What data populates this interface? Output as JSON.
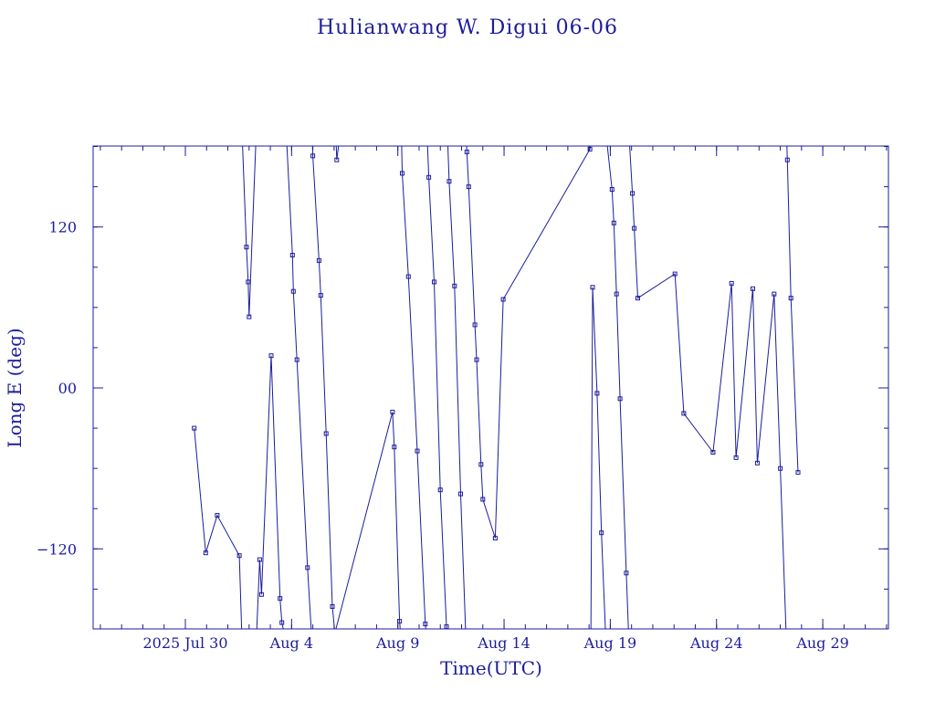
{
  "chart_data": {
    "type": "line",
    "title": "Hulianwang W. Digui 06-06",
    "xlabel": "Time(UTC)",
    "ylabel": "Long E (deg)",
    "ylim": [
      -180,
      180
    ],
    "xlim": [
      "2025-07-26",
      "2025-09-02"
    ],
    "x_ticks": [
      {
        "date": "2025-07-30",
        "label": "2025 Jul 30"
      },
      {
        "date": "2025-08-04",
        "label": "Aug  4"
      },
      {
        "date": "2025-08-09",
        "label": "Aug  9"
      },
      {
        "date": "2025-08-14",
        "label": "Aug 14"
      },
      {
        "date": "2025-08-19",
        "label": "Aug 19"
      },
      {
        "date": "2025-08-24",
        "label": "Aug 24"
      },
      {
        "date": "2025-08-29",
        "label": "Aug 29"
      }
    ],
    "y_ticks": [
      {
        "value": 120,
        "label": "120"
      },
      {
        "value": 0,
        "label": "00"
      },
      {
        "value": -120,
        "label": "−120"
      }
    ],
    "marker": "square",
    "color": "#1c1c9c",
    "background": "#ffffff",
    "series": [
      {
        "values": [
          [
            "2025-07-30 10:00",
            -30
          ],
          [
            "2025-07-30 23:00",
            -123
          ],
          [
            "2025-07-31 12:00",
            -95
          ],
          [
            "2025-08-01 13:00",
            -125
          ],
          [
            "2025-08-01 16:00",
            -190
          ]
        ]
      },
      {
        "values": [
          [
            "2025-08-01 16:00",
            190
          ],
          [
            "2025-08-01 21:00",
            105
          ],
          [
            "2025-08-01 23:00",
            79
          ],
          [
            "2025-08-02 00:00",
            53
          ],
          [
            "2025-08-02 08:00",
            190
          ]
        ]
      },
      {
        "values": [
          [
            "2025-08-02 08:00",
            -190
          ],
          [
            "2025-08-02 12:00",
            -128
          ],
          [
            "2025-08-02 14:00",
            -154
          ],
          [
            "2025-08-03 01:00",
            24
          ],
          [
            "2025-08-03 11:00",
            -157
          ],
          [
            "2025-08-03 13:00",
            -175
          ],
          [
            "2025-08-03 18:00",
            -190
          ]
        ]
      },
      {
        "values": [
          [
            "2025-08-03 18:00",
            190
          ],
          [
            "2025-08-04 01:00",
            99
          ],
          [
            "2025-08-04 02:00",
            72
          ],
          [
            "2025-08-04 06:00",
            21
          ],
          [
            "2025-08-04 18:00",
            -134
          ],
          [
            "2025-08-04 23:00",
            -190
          ]
        ]
      },
      {
        "values": [
          [
            "2025-08-04 23:00",
            190
          ],
          [
            "2025-08-05 00:00",
            173
          ],
          [
            "2025-08-05 07:00",
            95
          ],
          [
            "2025-08-05 09:00",
            69
          ],
          [
            "2025-08-05 15:00",
            -34
          ],
          [
            "2025-08-05 22:00",
            -163
          ],
          [
            "2025-08-06 02:00",
            -190
          ]
        ]
      },
      {
        "values": [
          [
            "2025-08-06 02:00",
            190
          ],
          [
            "2025-08-06 03:00",
            170
          ],
          [
            "2025-08-06 05:00",
            180
          ]
        ]
      },
      {
        "values": [
          [
            "2025-08-06 02:00",
            -180
          ],
          [
            "2025-08-08 18:00",
            -18
          ],
          [
            "2025-08-08 20:00",
            -44
          ],
          [
            "2025-08-09 02:00",
            -174
          ],
          [
            "2025-08-09 04:00",
            -190
          ]
        ]
      },
      {
        "values": [
          [
            "2025-08-09 04:00",
            190
          ],
          [
            "2025-08-09 05:00",
            160
          ],
          [
            "2025-08-09 12:00",
            83
          ],
          [
            "2025-08-09 22:00",
            -47
          ],
          [
            "2025-08-10 07:00",
            -176
          ],
          [
            "2025-08-10 09:00",
            -190
          ]
        ]
      },
      {
        "values": [
          [
            "2025-08-10 09:00",
            190
          ],
          [
            "2025-08-10 11:00",
            157
          ],
          [
            "2025-08-10 17:00",
            79
          ],
          [
            "2025-08-11 00:00",
            -76
          ],
          [
            "2025-08-11 07:00",
            -178
          ],
          [
            "2025-08-11 08:00",
            -190
          ]
        ]
      },
      {
        "values": [
          [
            "2025-08-11 08:00",
            190
          ],
          [
            "2025-08-11 10:00",
            154
          ],
          [
            "2025-08-11 16:00",
            76
          ],
          [
            "2025-08-11 23:00",
            -79
          ],
          [
            "2025-08-12 05:00",
            -190
          ]
        ]
      },
      {
        "values": [
          [
            "2025-08-12 05:00",
            190
          ],
          [
            "2025-08-12 06:00",
            176
          ],
          [
            "2025-08-12 08:00",
            150
          ],
          [
            "2025-08-12 15:00",
            47
          ],
          [
            "2025-08-12 17:00",
            21
          ],
          [
            "2025-08-12 22:00",
            -57
          ],
          [
            "2025-08-13 00:00",
            -83
          ],
          [
            "2025-08-13 14:00",
            -112
          ],
          [
            "2025-08-13 23:00",
            66
          ],
          [
            "2025-08-18 01:00",
            178
          ],
          [
            "2025-08-18 02:00",
            190
          ]
        ]
      },
      {
        "values": [
          [
            "2025-08-18 02:00",
            -190
          ],
          [
            "2025-08-18 04:00",
            75
          ],
          [
            "2025-08-18 09:00",
            -4
          ],
          [
            "2025-08-18 14:00",
            -108
          ],
          [
            "2025-08-18 19:00",
            -190
          ]
        ]
      },
      {
        "values": [
          [
            "2025-08-18 19:00",
            190
          ],
          [
            "2025-08-19 02:00",
            148
          ],
          [
            "2025-08-19 04:00",
            123
          ],
          [
            "2025-08-19 07:00",
            70
          ],
          [
            "2025-08-19 11:00",
            -8
          ],
          [
            "2025-08-19 18:00",
            -138
          ],
          [
            "2025-08-19 21:00",
            -190
          ]
        ]
      },
      {
        "values": [
          [
            "2025-08-19 21:00",
            190
          ],
          [
            "2025-08-20 01:00",
            145
          ],
          [
            "2025-08-20 03:00",
            119
          ],
          [
            "2025-08-20 07:00",
            67
          ],
          [
            "2025-08-22 01:00",
            85
          ],
          [
            "2025-08-22 11:00",
            -19
          ],
          [
            "2025-08-23 20:00",
            -48
          ],
          [
            "2025-08-24 17:00",
            78
          ],
          [
            "2025-08-24 22:00",
            -52
          ],
          [
            "2025-08-25 17:00",
            74
          ],
          [
            "2025-08-25 22:00",
            -56
          ],
          [
            "2025-08-26 17:00",
            70
          ],
          [
            "2025-08-27 00:00",
            -60
          ],
          [
            "2025-08-27 07:00",
            -190
          ]
        ]
      },
      {
        "values": [
          [
            "2025-08-27 07:00",
            190
          ],
          [
            "2025-08-27 08:00",
            170
          ],
          [
            "2025-08-27 12:00",
            67
          ],
          [
            "2025-08-27 20:00",
            -63
          ]
        ]
      }
    ]
  }
}
